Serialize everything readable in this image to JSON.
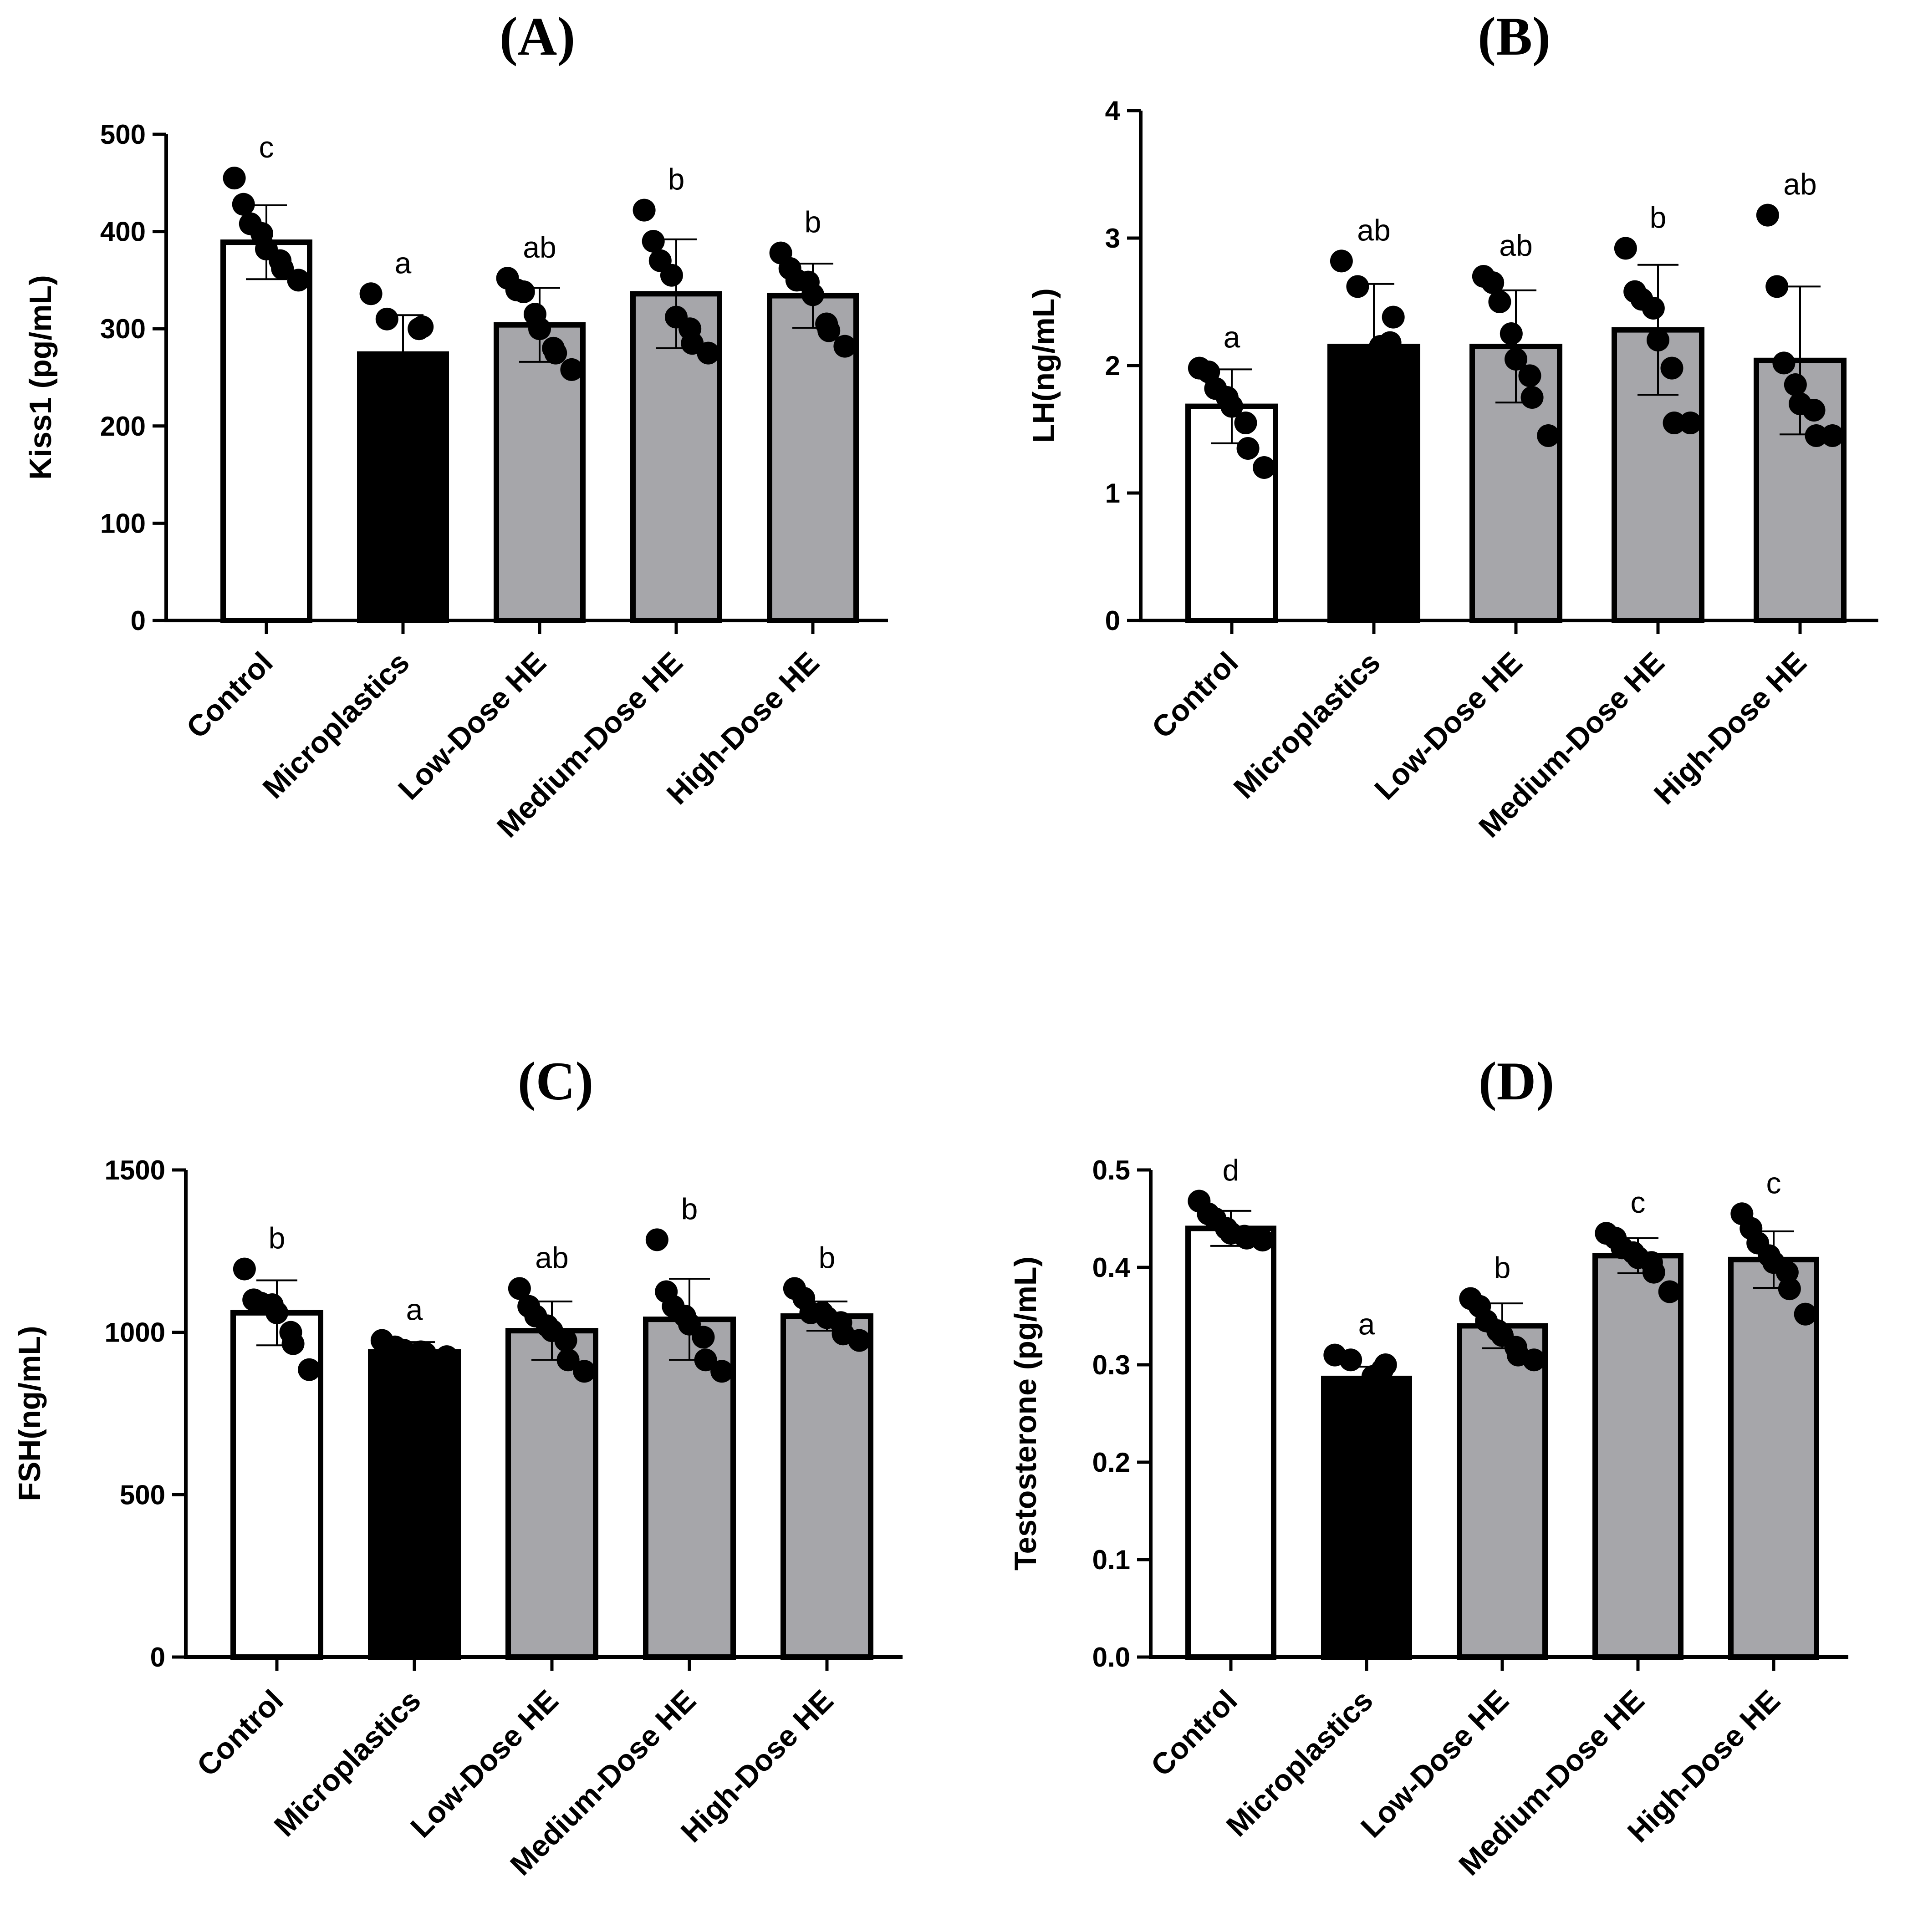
{
  "figure": {
    "bar_colors": {
      "Control": "#ffffff",
      "Microplastics": "#000000",
      "Low-Dose HE": "#a6a6aa",
      "Medium-Dose HE": "#a6a6aa",
      "High-Dose HE": "#a6a6aa"
    },
    "point_color": "#000000"
  },
  "chart_data": [
    {
      "type": "bar",
      "title": "(A)",
      "ylabel": "Kiss1 (pg/mL)",
      "xlabel": "",
      "categories": [
        "Control",
        "Microplastics",
        "Low-Dose HE",
        "Medium-Dose HE",
        "High-Dose HE"
      ],
      "ylim": [
        0,
        500
      ],
      "yticks": [
        0,
        100,
        200,
        300,
        400,
        500
      ],
      "ytick_labels": [
        "0",
        "100",
        "200",
        "300",
        "400",
        "500"
      ],
      "series": [
        {
          "name": "mean",
          "values": [
            389,
            274,
            304,
            336,
            334
          ]
        }
      ],
      "error": [
        38,
        40,
        38,
        56,
        33
      ],
      "significance": [
        "c",
        "a",
        "ab",
        "b",
        "b"
      ],
      "points": [
        [
          455,
          428,
          408,
          398,
          382,
          370,
          362,
          350
        ],
        [
          336,
          310,
          302,
          300,
          250
        ],
        [
          352,
          340,
          338,
          315,
          300,
          280,
          275,
          258
        ],
        [
          422,
          390,
          370,
          355,
          312,
          300,
          285,
          275
        ],
        [
          378,
          362,
          350,
          348,
          335,
          305,
          298,
          282
        ]
      ],
      "grid": false,
      "legend": "none"
    },
    {
      "type": "bar",
      "title": "(B)",
      "ylabel": "LH(ng/mL)",
      "xlabel": "",
      "categories": [
        "Control",
        "Microplastics",
        "Low-Dose HE",
        "Medium-Dose HE",
        "High-Dose HE"
      ],
      "ylim": [
        0,
        4
      ],
      "yticks": [
        0,
        1,
        2,
        3,
        4
      ],
      "ytick_labels": [
        "0",
        "1",
        "2",
        "3",
        "4"
      ],
      "series": [
        {
          "name": "mean",
          "values": [
            1.68,
            2.15,
            2.15,
            2.28,
            2.04
          ]
        }
      ],
      "error": [
        0.29,
        0.49,
        0.44,
        0.51,
        0.58
      ],
      "significance": [
        "a",
        "ab",
        "ab",
        "b",
        "ab"
      ],
      "points": [
        [
          1.98,
          1.95,
          1.82,
          1.75,
          1.68,
          1.55,
          1.35,
          1.2
        ],
        [
          2.82,
          2.62,
          2.38,
          2.18,
          2.15
        ],
        [
          2.7,
          2.65,
          2.5,
          2.25,
          2.05,
          1.92,
          1.75,
          1.45
        ],
        [
          2.92,
          2.58,
          2.52,
          2.45,
          2.2,
          1.98,
          1.55,
          1.55
        ],
        [
          3.18,
          2.62,
          2.02,
          1.85,
          1.7,
          1.65,
          1.45,
          1.45
        ]
      ],
      "grid": false,
      "legend": "none"
    },
    {
      "type": "bar",
      "title": "(C)",
      "ylabel": "FSH(ng/mL)",
      "xlabel": "",
      "categories": [
        "Control",
        "Microplastics",
        "Low-Dose HE",
        "Medium-Dose HE",
        "High-Dose HE"
      ],
      "ylim": [
        0,
        1500
      ],
      "yticks": [
        0,
        500,
        1000,
        1500
      ],
      "ytick_labels": [
        "0",
        "500",
        "1000",
        "1500"
      ],
      "series": [
        {
          "name": "mean",
          "values": [
            1060,
            940,
            1005,
            1040,
            1050
          ]
        }
      ],
      "error": [
        100,
        30,
        90,
        125,
        45
      ],
      "significance": [
        "b",
        "a",
        "ab",
        "b",
        "b"
      ],
      "points": [
        [
          1195,
          1100,
          1090,
          1085,
          1060,
          1000,
          965,
          885
        ],
        [
          975,
          955,
          945,
          940,
          935,
          925
        ],
        [
          1135,
          1080,
          1050,
          1020,
          1005,
          975,
          915,
          880
        ],
        [
          1285,
          1125,
          1080,
          1050,
          1025,
          985,
          915,
          880
        ],
        [
          1135,
          1105,
          1060,
          1060,
          1045,
          1030,
          995,
          975
        ]
      ],
      "grid": false,
      "legend": "none"
    },
    {
      "type": "bar",
      "title": "(D)",
      "ylabel": "Testosterone (pg/mL)",
      "xlabel": "",
      "categories": [
        "Control",
        "Microplastics",
        "Low-Dose HE",
        "Medium-Dose HE",
        "High-Dose HE"
      ],
      "ylim": [
        0,
        0.5
      ],
      "yticks": [
        0.0,
        0.1,
        0.2,
        0.3,
        0.4,
        0.5
      ],
      "ytick_labels": [
        "0.0",
        "0.1",
        "0.2",
        "0.3",
        "0.4",
        "0.5"
      ],
      "series": [
        {
          "name": "mean",
          "values": [
            0.44,
            0.286,
            0.34,
            0.412,
            0.408
          ]
        }
      ],
      "error": [
        0.018,
        0.012,
        0.023,
        0.018,
        0.029
      ],
      "significance": [
        "d",
        "a",
        "b",
        "c",
        "c"
      ],
      "points": [
        [
          0.468,
          0.455,
          0.45,
          0.44,
          0.435,
          0.432,
          0.43,
          0.428
        ],
        [
          0.31,
          0.305,
          0.3,
          0.295,
          0.288
        ],
        [
          0.368,
          0.36,
          0.345,
          0.335,
          0.33,
          0.318,
          0.31,
          0.305
        ],
        [
          0.435,
          0.43,
          0.42,
          0.415,
          0.41,
          0.405,
          0.395,
          0.375
        ],
        [
          0.455,
          0.44,
          0.425,
          0.412,
          0.405,
          0.395,
          0.378,
          0.352
        ]
      ],
      "grid": false,
      "legend": "none"
    }
  ]
}
